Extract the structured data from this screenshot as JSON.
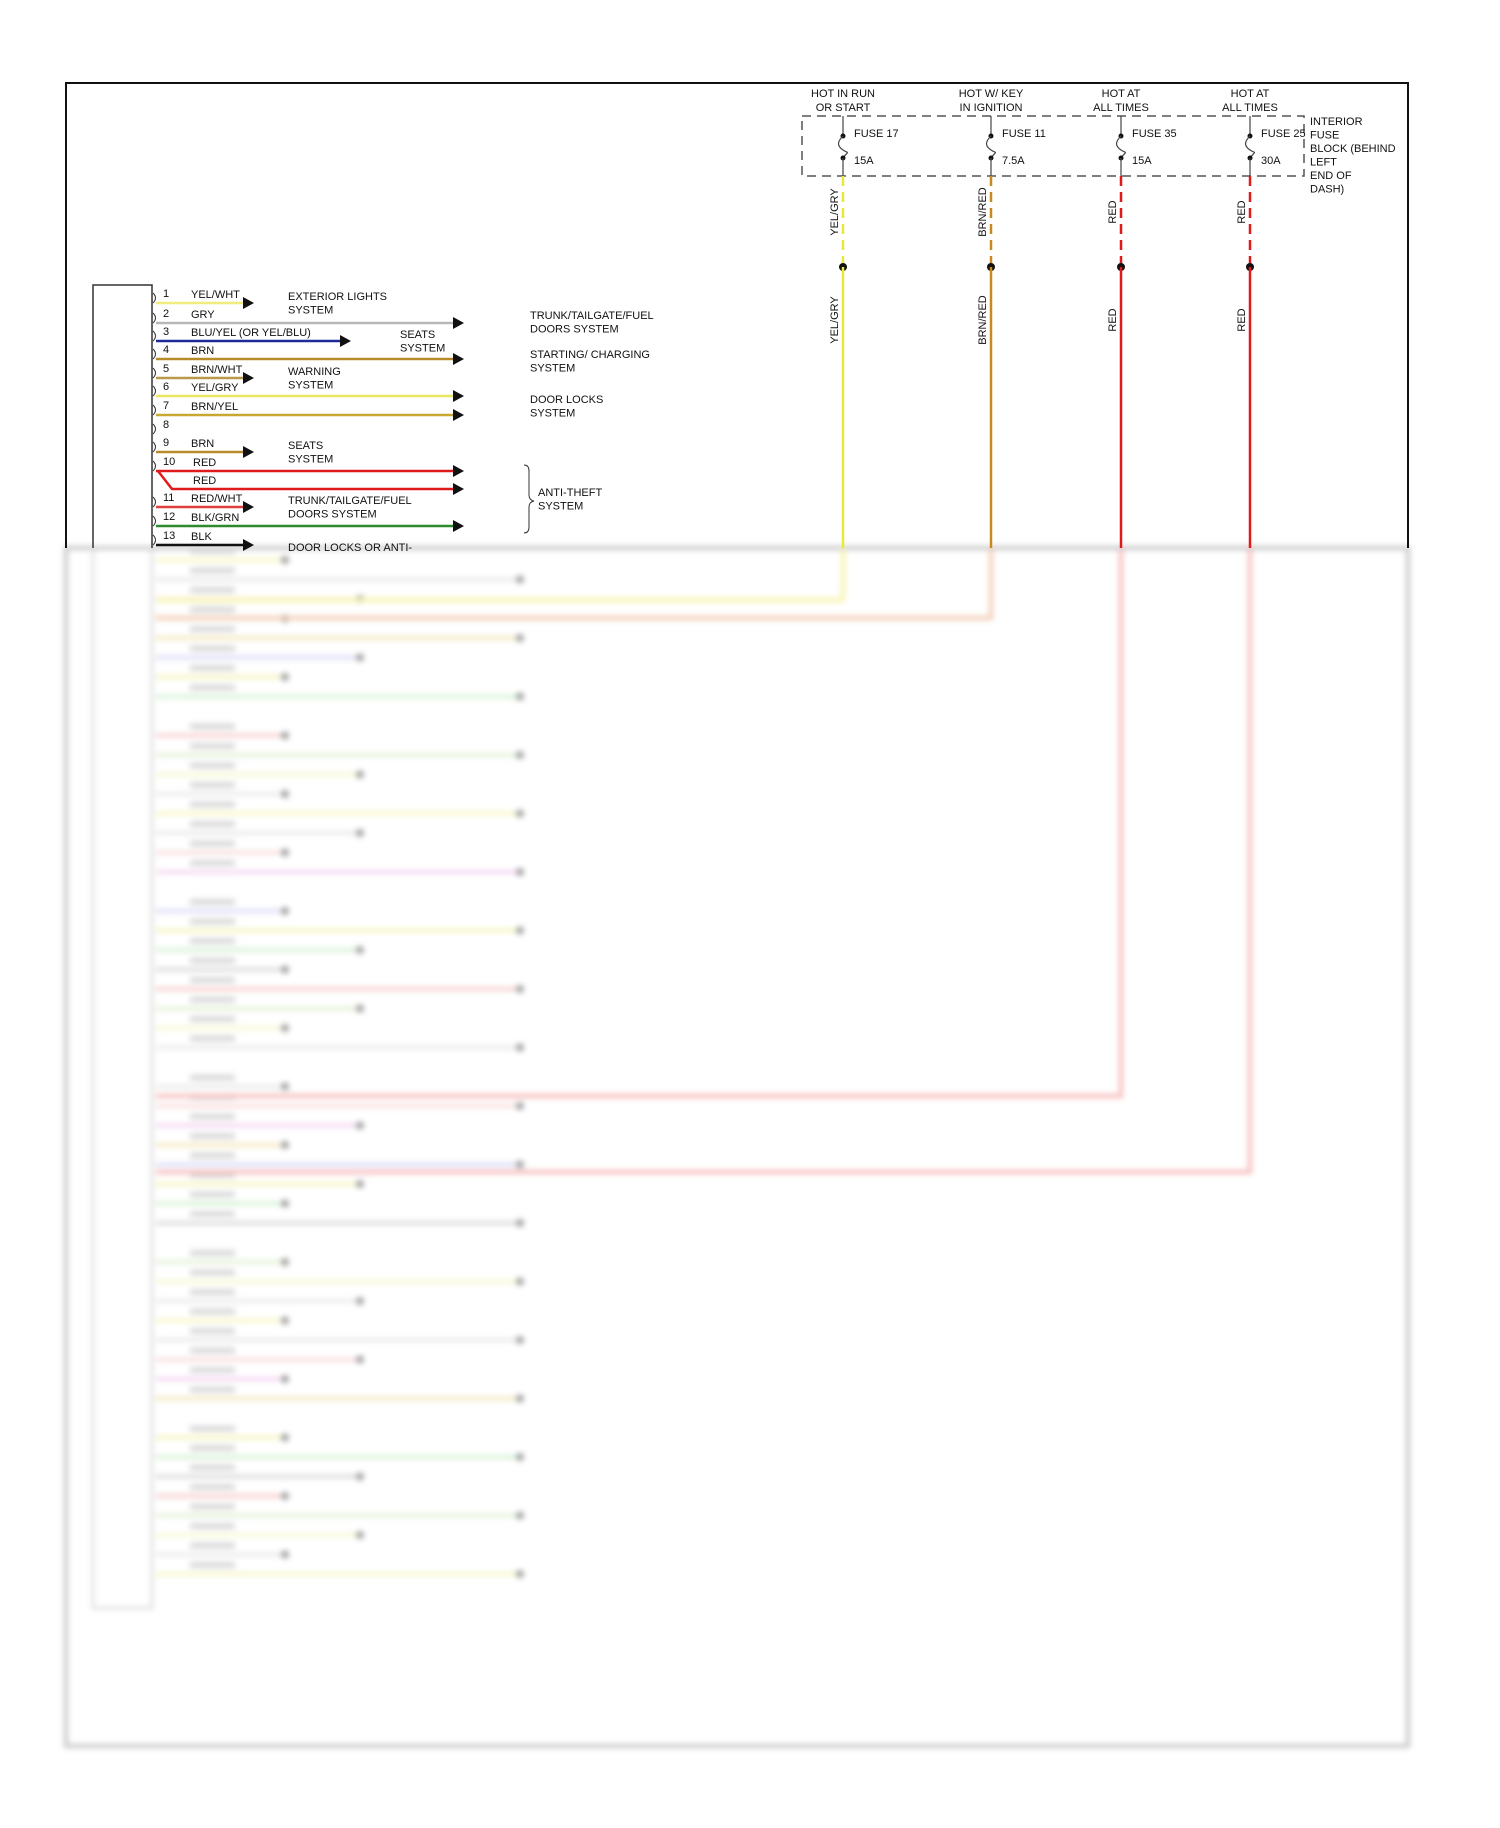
{
  "colors": {
    "frame": "#111111",
    "YEL": "#f2ee3a",
    "YEL_GRY": "#e8e83a",
    "BRN_RED": "#c98a1a",
    "RED": "#e01a1a",
    "GRY": "#b8b8b8",
    "BLU": "#1f2a9a",
    "BRN": "#b88a2a",
    "GRN": "#2e8a2e",
    "BLK": "#111111"
  },
  "power_sources": [
    {
      "heading": [
        "HOT IN RUN",
        "OR START"
      ],
      "fuse": "FUSE 17",
      "rating": "15A",
      "wire": "YEL/GRY",
      "color": "#e8e83a"
    },
    {
      "heading": [
        "HOT W/ KEY",
        "IN IGNITION"
      ],
      "fuse": "FUSE 11",
      "rating": "7.5A",
      "wire": "BRN/RED",
      "color": "#c98a1a"
    },
    {
      "heading": [
        "HOT AT",
        "ALL TIMES"
      ],
      "fuse": "FUSE 35",
      "rating": "15A",
      "wire": "RED",
      "color": "#e01a1a"
    },
    {
      "heading": [
        "HOT AT",
        "ALL TIMES"
      ],
      "fuse": "FUSE 25",
      "rating": "30A",
      "wire": "RED",
      "color": "#e01a1a"
    }
  ],
  "fuse_block_label": [
    "INTERIOR",
    "FUSE",
    "BLOCK (BEHIND",
    "LEFT",
    "END OF",
    "DASH)"
  ],
  "connector_rows": [
    {
      "pin": "1",
      "wire": "YEL/WHT",
      "color": "#f0ec80"
    },
    {
      "pin": "2",
      "wire": "GRY",
      "color": "#b8b8b8"
    },
    {
      "pin": "3",
      "wire": "BLU/YEL (OR YEL/BLU)",
      "color": "#1f2a9a"
    },
    {
      "pin": "4",
      "wire": "BRN",
      "color": "#b88a2a"
    },
    {
      "pin": "5",
      "wire": "BRN/WHT",
      "color": "#b89a4a"
    },
    {
      "pin": "6",
      "wire": "YEL/GRY",
      "color": "#e8e860"
    },
    {
      "pin": "7",
      "wire": "BRN/YEL",
      "color": "#c8a830"
    },
    {
      "pin": "8",
      "wire": "",
      "color": ""
    },
    {
      "pin": "9",
      "wire": "BRN",
      "color": "#b88a2a"
    },
    {
      "pin": "10",
      "wire": "RED",
      "color": "#e01a1a"
    },
    {
      "pin": "",
      "wire": "RED",
      "color": "#e01a1a"
    },
    {
      "pin": "11",
      "wire": "RED/WHT",
      "color": "#e04040"
    },
    {
      "pin": "12",
      "wire": "BLK/GRN",
      "color": "#2e8a2e"
    },
    {
      "pin": "13",
      "wire": "BLK",
      "color": "#111111"
    }
  ],
  "systems": [
    {
      "lines": [
        "EXTERIOR LIGHTS",
        "SYSTEM"
      ]
    },
    {
      "lines": [
        "TRUNK/TAILGATE/FUEL",
        "DOORS SYSTEM"
      ]
    },
    {
      "lines": [
        "SEATS",
        "SYSTEM"
      ]
    },
    {
      "lines": [
        "STARTING/ CHARGING",
        "SYSTEM"
      ]
    },
    {
      "lines": [
        "WARNING",
        "SYSTEM"
      ]
    },
    {
      "lines": [
        "DOOR LOCKS",
        "SYSTEM"
      ]
    },
    {
      "lines": [
        "SEATS",
        "SYSTEM"
      ]
    },
    {
      "lines": [
        "ANTI-THEFT",
        "SYSTEM"
      ]
    },
    {
      "lines": [
        "TRUNK/TAILGATE/FUEL",
        "DOORS SYSTEM"
      ]
    },
    {
      "lines": [
        "DOOR LOCKS OR ANTI-"
      ]
    }
  ]
}
